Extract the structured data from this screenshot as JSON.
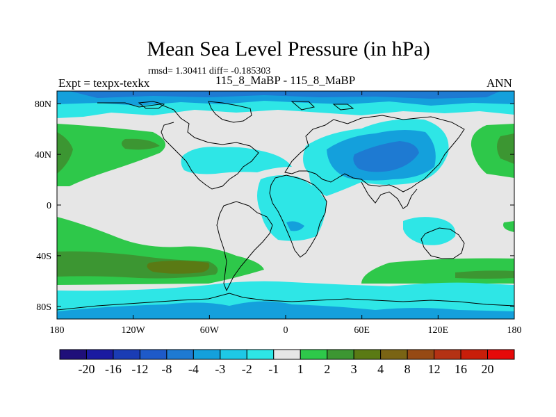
{
  "chart_data": {
    "type": "heatmap",
    "title": "Mean Sea Level Pressure (in hPa)",
    "stats_line": "rmsd= 1.30411 diff= -0.185303",
    "subtitle": "115_8_MaBP - 115_8_MaBP",
    "left_label": "Expt = texpx-texkx",
    "right_label": "ANN",
    "xlim": [
      -180,
      180
    ],
    "ylim": [
      -90,
      90
    ],
    "x_ticks": [
      {
        "value": -180,
        "label": "180"
      },
      {
        "value": -120,
        "label": "120W"
      },
      {
        "value": -60,
        "label": "60W"
      },
      {
        "value": 0,
        "label": "0"
      },
      {
        "value": 60,
        "label": "60E"
      },
      {
        "value": 120,
        "label": "120E"
      },
      {
        "value": 180,
        "label": "180"
      }
    ],
    "y_ticks": [
      {
        "value": 80,
        "label": "80N"
      },
      {
        "value": 40,
        "label": "40N"
      },
      {
        "value": 0,
        "label": "0"
      },
      {
        "value": -40,
        "label": "40S"
      },
      {
        "value": -80,
        "label": "80S"
      }
    ],
    "colorbar": {
      "levels": [
        "-20",
        "-16",
        "-12",
        "-8",
        "-4",
        "-3",
        "-2",
        "-1",
        "1",
        "2",
        "3",
        "4",
        "8",
        "12",
        "16",
        "20"
      ],
      "colors": [
        "#1f0f7a",
        "#1a1aa0",
        "#1a3cb4",
        "#1e5ac8",
        "#1e7ad2",
        "#14a0dc",
        "#1ec8e6",
        "#2ee6e6",
        "#e6e6e6",
        "#2ec84a",
        "#3c9632",
        "#5a7a14",
        "#7a6414",
        "#964a14",
        "#b43214",
        "#c81e0a",
        "#e60a0a"
      ]
    }
  }
}
